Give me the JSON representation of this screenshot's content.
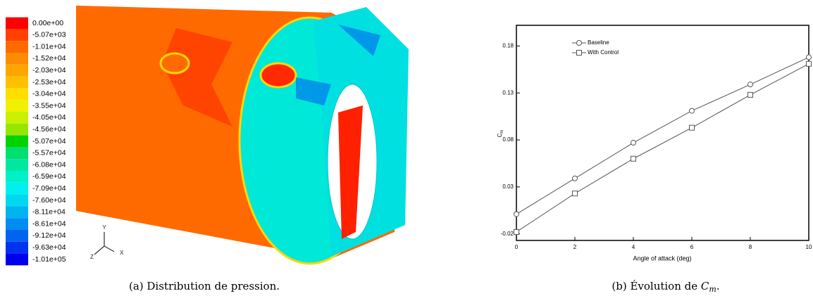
{
  "colorbar": {
    "labels": [
      "0.00e+00",
      "-5.07e+03",
      "-1.01e+04",
      "-1.52e+04",
      "-2.03e+04",
      "-2.53e+04",
      "-3.04e+04",
      "-3.55e+04",
      "-4.05e+04",
      "-4.56e+04",
      "-5.07e+04",
      "-5.57e+04",
      "-6.08e+04",
      "-6.59e+04",
      "-7.09e+04",
      "-7.60e+04",
      "-8.11e+04",
      "-8.61e+04",
      "-9.12e+04",
      "-9.63e+04",
      "-1.01e+05"
    ],
    "colors": [
      "#ff0000",
      "#ff4000",
      "#ff6a00",
      "#ff8c00",
      "#ffa500",
      "#ffc000",
      "#ffde00",
      "#f0f000",
      "#c8f000",
      "#96e600",
      "#00d200",
      "#00e070",
      "#00e8a0",
      "#00f0c8",
      "#00f0f0",
      "#00d8f0",
      "#00b4f0",
      "#008cf0",
      "#0064f0",
      "#0032f0",
      "#0000f0"
    ]
  },
  "axes_triad": {
    "y": "Y",
    "z": "Z",
    "x": "X"
  },
  "caption_a": "(a) Distribution de pression.",
  "caption_b": {
    "text": "(b) Évolution de",
    "symbol": "C",
    "subscript": "m",
    "end": "."
  },
  "chart_data": {
    "type": "line",
    "x_label": "Angle of attack (deg)",
    "y_label": "C",
    "y_label_sub": "m",
    "x": [
      0,
      2,
      4,
      6,
      8,
      10
    ],
    "series": [
      {
        "name": "Baseline",
        "color": "#555555",
        "marker": "circle",
        "values": [
          0.001,
          0.039,
          0.077,
          0.111,
          0.139,
          0.168
        ]
      },
      {
        "name": "With Control",
        "color": "#555555",
        "marker": "square",
        "values": [
          -0.018,
          0.023,
          0.06,
          0.093,
          0.128,
          0.161
        ]
      }
    ],
    "xlim": [
      0,
      10
    ],
    "xticks": [
      0,
      2,
      4,
      6,
      8,
      10
    ],
    "ylim": [
      -0.027,
      0.202
    ],
    "yticks": [
      -0.02,
      0.03,
      0.08,
      0.13,
      0.18
    ]
  }
}
